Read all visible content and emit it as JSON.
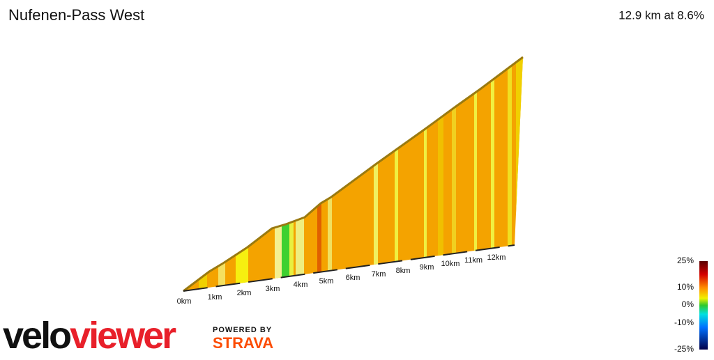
{
  "header": {
    "title": "Nufenen-Pass West",
    "stats": "12.9 km at 8.6%"
  },
  "distance_labels": [
    "0km",
    "1km",
    "2km",
    "3km",
    "4km",
    "5km",
    "6km",
    "7km",
    "8km",
    "9km",
    "10km",
    "11km",
    "12km"
  ],
  "gradient_legend": [
    "25%",
    "10%",
    "0%",
    "-10%",
    "-25%"
  ],
  "logo": {
    "velo": "velo",
    "viewer": "viewer",
    "powered_by": "POWERED BY",
    "strava": "STRAVA"
  }
}
